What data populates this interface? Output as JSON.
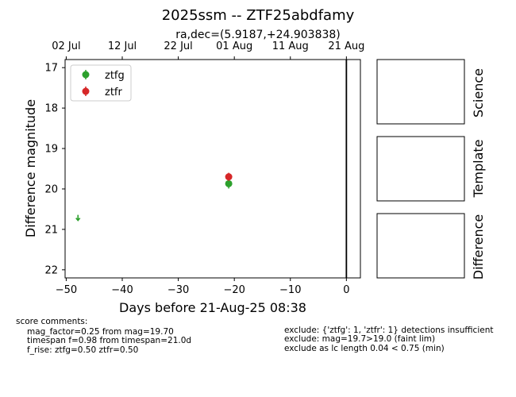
{
  "chart_data": {
    "type": "scatter",
    "title": "2025ssm -- ZTF25abdfamy",
    "subtitle": "ra,dec=(5.9187,+24.903838)",
    "xlabel": "Days before 21-Aug-25 08:38",
    "ylabel": "Difference magnitude",
    "xlim": [
      -50.2,
      2.5
    ],
    "ylim": [
      22.2,
      16.8
    ],
    "y_inverted": true,
    "x_ticks": [
      -50,
      -40,
      -30,
      -20,
      -10,
      0
    ],
    "x_tick_labels": [
      "−50",
      "−40",
      "−30",
      "−20",
      "−10",
      "0"
    ],
    "y_ticks": [
      17,
      18,
      19,
      20,
      21,
      22
    ],
    "y_tick_labels": [
      "17",
      "18",
      "19",
      "20",
      "21",
      "22"
    ],
    "top_axis_ticks": [
      {
        "x": -50,
        "label": "02 Jul"
      },
      {
        "x": -40,
        "label": "12 Jul"
      },
      {
        "x": -30,
        "label": "22 Jul"
      },
      {
        "x": -20,
        "label": "01 Aug"
      },
      {
        "x": -10,
        "label": "11 Aug"
      },
      {
        "x": 0,
        "label": "21 Aug"
      }
    ],
    "vertical_line_x": 0,
    "legend_position": "upper-left",
    "series": [
      {
        "name": "ztfg",
        "color": "#2ca02c",
        "points": [
          {
            "x": -21.0,
            "y": 19.87,
            "err": 0.12
          }
        ],
        "upper_limits": [
          {
            "x": -47.9,
            "y": 20.72
          }
        ]
      },
      {
        "name": "ztfr",
        "color": "#d62728",
        "points": [
          {
            "x": -21.0,
            "y": 19.7,
            "err": 0.1
          }
        ],
        "upper_limits": []
      }
    ],
    "side_panels": [
      "Science",
      "Template",
      "Difference"
    ]
  },
  "comments": {
    "left": [
      "score comments:",
      "mag_factor=0.25 from mag=19.70",
      "timespan f=0.98 from timespan=21.0d",
      "f_rise: ztfg=0.50 ztfr=0.50"
    ],
    "right": [
      "exclude: {'ztfg': 1, 'ztfr': 1} detections insufficient",
      "exclude: mag=19.7>19.0 (faint lim)",
      "exclude as lc length 0.04 < 0.75 (min)"
    ]
  }
}
